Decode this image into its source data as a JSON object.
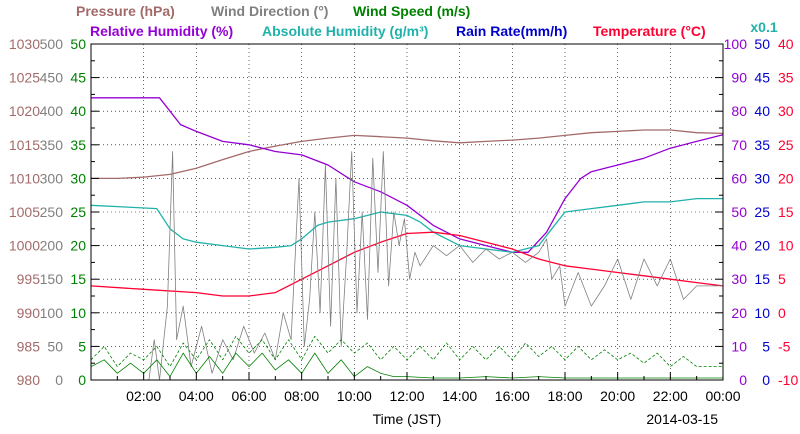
{
  "chart_data": {
    "type": "line",
    "xlabel": "Time (JST)",
    "date": "2014-03-15",
    "x_ticks": [
      "02:00",
      "04:00",
      "06:00",
      "08:00",
      "10:00",
      "12:00",
      "14:00",
      "16:00",
      "18:00",
      "20:00",
      "22:00",
      "00:00"
    ],
    "xlim": [
      0,
      24
    ],
    "grid": true,
    "legend": {
      "row1": [
        {
          "text": "Pressure (hPa)",
          "color": "#a46a6a"
        },
        {
          "text": "Wind Direction (°)",
          "color": "#808080"
        },
        {
          "text": "Wind Speed (m/s)",
          "color": "#008000"
        }
      ],
      "row2": [
        {
          "text": "Relative Humidity (%)",
          "color": "#9400d3"
        },
        {
          "text": "Absolute Humidity (g/m³)",
          "color": "#20b2aa"
        },
        {
          "text": "Rain Rate(mm/h)",
          "color": "#0000cd"
        },
        {
          "text": "Temperature (°C)",
          "color": "#ff0033"
        }
      ],
      "multiplier": {
        "text": "x0.1",
        "color": "#20b2aa"
      }
    },
    "axes": {
      "pressure": {
        "ylim": [
          980,
          1030
        ],
        "ticks": [
          "1030",
          "1025",
          "1020",
          "1015",
          "1010",
          "1005",
          "1000",
          "995",
          "990",
          "985",
          "980"
        ],
        "color": "#a46a6a"
      },
      "wind_direction": {
        "ylim": [
          0,
          500
        ],
        "ticks": [
          "500",
          "450",
          "400",
          "350",
          "300",
          "250",
          "200",
          "150",
          "100",
          "50",
          "0"
        ],
        "color": "#808080"
      },
      "wind_speed": {
        "ylim": [
          0,
          50
        ],
        "ticks": [
          "50",
          "45",
          "40",
          "35",
          "30",
          "25",
          "20",
          "15",
          "10",
          "5",
          "0"
        ],
        "color": "#008000"
      },
      "humidity": {
        "ylim": [
          0,
          100
        ],
        "ticks": [
          "100",
          "90",
          "80",
          "70",
          "60",
          "50",
          "40",
          "30",
          "20",
          "10",
          "0"
        ],
        "color": "#9400d3"
      },
      "rain_rate": {
        "ylim": [
          0,
          50
        ],
        "ticks": [
          "50",
          "45",
          "40",
          "35",
          "30",
          "25",
          "20",
          "15",
          "10",
          "5",
          "0"
        ],
        "color": "#0000cd"
      },
      "temperature": {
        "ylim": [
          -10,
          40
        ],
        "ticks": [
          "40",
          "35",
          "30",
          "25",
          "20",
          "15",
          "10",
          "5",
          "0",
          "-5",
          "-10"
        ],
        "color": "#ff0033"
      }
    },
    "series": [
      {
        "name": "Pressure (hPa)",
        "axis": "pressure",
        "color": "#a46a6a",
        "width": 1.3,
        "points": [
          [
            0,
            1010
          ],
          [
            1,
            1010
          ],
          [
            2,
            1010.2
          ],
          [
            3,
            1010.6
          ],
          [
            4,
            1011.5
          ],
          [
            5,
            1012.8
          ],
          [
            6,
            1014
          ],
          [
            7,
            1014.8
          ],
          [
            8,
            1015.5
          ],
          [
            9,
            1016
          ],
          [
            10,
            1016.4
          ],
          [
            11,
            1016.2
          ],
          [
            12,
            1016
          ],
          [
            13,
            1015.6
          ],
          [
            14,
            1015.3
          ],
          [
            15,
            1015.5
          ],
          [
            16,
            1015.7
          ],
          [
            17,
            1016
          ],
          [
            18,
            1016.4
          ],
          [
            19,
            1016.8
          ],
          [
            20,
            1017
          ],
          [
            21,
            1017.2
          ],
          [
            22,
            1017.2
          ],
          [
            23,
            1016.8
          ],
          [
            24,
            1016.7
          ]
        ]
      },
      {
        "name": "Relative Humidity (%)",
        "axis": "humidity",
        "color": "#9400d3",
        "width": 1.3,
        "points": [
          [
            0,
            84
          ],
          [
            2.6,
            84
          ],
          [
            3,
            80
          ],
          [
            3.4,
            76
          ],
          [
            4,
            74
          ],
          [
            5,
            71
          ],
          [
            6,
            70
          ],
          [
            7,
            68
          ],
          [
            8,
            67
          ],
          [
            9,
            64
          ],
          [
            10,
            59
          ],
          [
            11,
            56
          ],
          [
            12,
            52
          ],
          [
            13,
            46
          ],
          [
            14,
            42
          ],
          [
            15,
            40
          ],
          [
            16,
            38
          ],
          [
            16.6,
            38
          ],
          [
            17.3,
            44
          ],
          [
            18,
            54
          ],
          [
            18.6,
            60
          ],
          [
            19,
            62
          ],
          [
            20,
            64
          ],
          [
            21,
            66
          ],
          [
            22,
            69
          ],
          [
            23,
            71
          ],
          [
            24,
            73
          ]
        ]
      },
      {
        "name": "Absolute Humidity (g/m³)",
        "axis": "humidity",
        "color": "#20b2aa",
        "width": 1.3,
        "points": [
          [
            0,
            52
          ],
          [
            2.5,
            51
          ],
          [
            3,
            45
          ],
          [
            3.5,
            42
          ],
          [
            4,
            41
          ],
          [
            5,
            40
          ],
          [
            6,
            39
          ],
          [
            7,
            39.5
          ],
          [
            7.6,
            40
          ],
          [
            8,
            42
          ],
          [
            8.6,
            46
          ],
          [
            9,
            47
          ],
          [
            10,
            48
          ],
          [
            11,
            50
          ],
          [
            12,
            49
          ],
          [
            12.5,
            47
          ],
          [
            13,
            44
          ],
          [
            14,
            40
          ],
          [
            15,
            39
          ],
          [
            16,
            38
          ],
          [
            17,
            40
          ],
          [
            17.5,
            45
          ],
          [
            18,
            50
          ],
          [
            19,
            51
          ],
          [
            20,
            52
          ],
          [
            21,
            53
          ],
          [
            22,
            53
          ],
          [
            23,
            54
          ],
          [
            24,
            54
          ]
        ]
      },
      {
        "name": "Temperature (°C)",
        "axis": "temperature",
        "color": "#ff0033",
        "width": 1.3,
        "points": [
          [
            0,
            4
          ],
          [
            2,
            3.5
          ],
          [
            4,
            3
          ],
          [
            5,
            2.5
          ],
          [
            6,
            2.5
          ],
          [
            7,
            3
          ],
          [
            7.5,
            4
          ],
          [
            8,
            5
          ],
          [
            9,
            7
          ],
          [
            10,
            9
          ],
          [
            11,
            10.5
          ],
          [
            12,
            11.8
          ],
          [
            13,
            12
          ],
          [
            14,
            11.5
          ],
          [
            15,
            10.5
          ],
          [
            16,
            9.5
          ],
          [
            17,
            8
          ],
          [
            18,
            7
          ],
          [
            19,
            6.5
          ],
          [
            20,
            6
          ],
          [
            21,
            5.5
          ],
          [
            22,
            5
          ],
          [
            23,
            4.5
          ],
          [
            24,
            4
          ]
        ]
      },
      {
        "name": "Wind Direction (°)",
        "axis": "wind_direction",
        "color": "#808080",
        "width": 0.8,
        "points": [
          [
            0,
            0
          ],
          [
            1.5,
            0
          ],
          [
            2.2,
            0
          ],
          [
            2.4,
            60
          ],
          [
            2.6,
            0
          ],
          [
            2.9,
            110
          ],
          [
            3.1,
            340
          ],
          [
            3.25,
            60
          ],
          [
            3.5,
            110
          ],
          [
            3.8,
            20
          ],
          [
            4.2,
            80
          ],
          [
            4.6,
            10
          ],
          [
            5,
            60
          ],
          [
            5.4,
            30
          ],
          [
            5.8,
            80
          ],
          [
            6.2,
            40
          ],
          [
            6.6,
            70
          ],
          [
            7,
            30
          ],
          [
            7.3,
            100
          ],
          [
            7.6,
            60
          ],
          [
            7.9,
            300
          ],
          [
            8.1,
            50
          ],
          [
            8.3,
            120
          ],
          [
            8.5,
            250
          ],
          [
            8.7,
            100
          ],
          [
            8.9,
            320
          ],
          [
            9.1,
            80
          ],
          [
            9.3,
            300
          ],
          [
            9.5,
            50
          ],
          [
            9.7,
            180
          ],
          [
            9.9,
            340
          ],
          [
            10.1,
            100
          ],
          [
            10.3,
            250
          ],
          [
            10.5,
            90
          ],
          [
            10.7,
            330
          ],
          [
            10.9,
            160
          ],
          [
            11.1,
            340
          ],
          [
            11.3,
            140
          ],
          [
            11.5,
            250
          ],
          [
            11.7,
            200
          ],
          [
            11.9,
            240
          ],
          [
            12.1,
            150
          ],
          [
            12.3,
            190
          ],
          [
            12.5,
            170
          ],
          [
            13,
            200
          ],
          [
            13.5,
            185
          ],
          [
            14,
            200
          ],
          [
            14.5,
            175
          ],
          [
            15,
            195
          ],
          [
            15.5,
            180
          ],
          [
            16,
            190
          ],
          [
            16.5,
            175
          ],
          [
            17,
            190
          ],
          [
            17.3,
            210
          ],
          [
            17.5,
            150
          ],
          [
            17.8,
            170
          ],
          [
            18,
            110
          ],
          [
            18.5,
            160
          ],
          [
            19,
            110
          ],
          [
            19.5,
            140
          ],
          [
            20,
            180
          ],
          [
            20.5,
            120
          ],
          [
            21,
            180
          ],
          [
            21.5,
            140
          ],
          [
            22,
            180
          ],
          [
            22.5,
            120
          ],
          [
            23,
            140
          ],
          [
            24,
            140
          ]
        ]
      },
      {
        "name": "Wind Speed (m/s)",
        "axis": "wind_speed",
        "color": "#008000",
        "width": 0.8,
        "points": [
          [
            0,
            2
          ],
          [
            0.5,
            3
          ],
          [
            1,
            1
          ],
          [
            1.5,
            2.5
          ],
          [
            2,
            1
          ],
          [
            2.5,
            3
          ],
          [
            3,
            0.5
          ],
          [
            3.5,
            4
          ],
          [
            4,
            1
          ],
          [
            4.5,
            3.5
          ],
          [
            5,
            1
          ],
          [
            5.5,
            4
          ],
          [
            6,
            2
          ],
          [
            6.5,
            4
          ],
          [
            7,
            1.5
          ],
          [
            7.5,
            3
          ],
          [
            8,
            1
          ],
          [
            8.5,
            4
          ],
          [
            9,
            1
          ],
          [
            9.5,
            3
          ],
          [
            10,
            0.5
          ],
          [
            10.5,
            2
          ],
          [
            11,
            1
          ],
          [
            11.5,
            0.5
          ],
          [
            12,
            0.5
          ],
          [
            13,
            0.3
          ],
          [
            14,
            0.3
          ],
          [
            15,
            0.5
          ],
          [
            16,
            0.3
          ],
          [
            17,
            0.5
          ],
          [
            18,
            0.3
          ],
          [
            19,
            0.3
          ],
          [
            20,
            0.3
          ],
          [
            21,
            0.3
          ],
          [
            22,
            0.3
          ],
          [
            23,
            0.3
          ],
          [
            24,
            0.3
          ]
        ]
      },
      {
        "name": "Wind Speed (m/s)",
        "axis": "wind_speed",
        "color": "#008000",
        "width": 0.8,
        "dashed": true,
        "points": [
          [
            0,
            3
          ],
          [
            0.5,
            5
          ],
          [
            1,
            2
          ],
          [
            1.5,
            4
          ],
          [
            2,
            3
          ],
          [
            2.5,
            5
          ],
          [
            3,
            2
          ],
          [
            3.5,
            5.5
          ],
          [
            4,
            3
          ],
          [
            4.5,
            6
          ],
          [
            5,
            3
          ],
          [
            5.5,
            6.5
          ],
          [
            6,
            4
          ],
          [
            6.5,
            6
          ],
          [
            7,
            3
          ],
          [
            7.5,
            6
          ],
          [
            8,
            3
          ],
          [
            8.5,
            6.5
          ],
          [
            9,
            4
          ],
          [
            9.5,
            6
          ],
          [
            10,
            4
          ],
          [
            10.5,
            5.5
          ],
          [
            11,
            3
          ],
          [
            11.5,
            5
          ],
          [
            12,
            3
          ],
          [
            12.5,
            5
          ],
          [
            13,
            3
          ],
          [
            13.5,
            5.5
          ],
          [
            14,
            3
          ],
          [
            14.5,
            5
          ],
          [
            15,
            3
          ],
          [
            15.5,
            5
          ],
          [
            16,
            3
          ],
          [
            16.5,
            5.5
          ],
          [
            17,
            3.5
          ],
          [
            17.5,
            5
          ],
          [
            18,
            3
          ],
          [
            18.5,
            5
          ],
          [
            19,
            3
          ],
          [
            19.5,
            4.5
          ],
          [
            20,
            3
          ],
          [
            20.5,
            4
          ],
          [
            21,
            2.5
          ],
          [
            21.5,
            4
          ],
          [
            22,
            2
          ],
          [
            22.5,
            3.5
          ],
          [
            23,
            2
          ],
          [
            24,
            2
          ]
        ]
      },
      {
        "name": "Rain Rate(mm/h)",
        "axis": "rain_rate",
        "color": "#0000cd",
        "width": 1,
        "points": [
          [
            0,
            0
          ],
          [
            24,
            0
          ]
        ]
      }
    ]
  }
}
